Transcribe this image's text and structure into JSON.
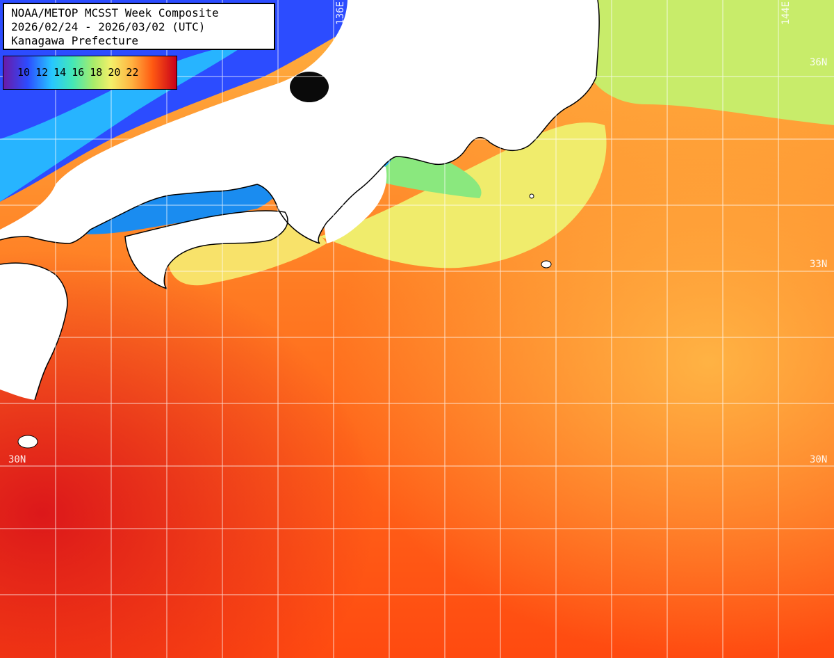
{
  "title": {
    "line1": "NOAA/METOP MCSST Week Composite",
    "line2": "2026/02/24 - 2026/03/02 (UTC)",
    "line3": "Kanagawa Prefecture"
  },
  "legend": {
    "ticks": [
      "10",
      "12",
      "14",
      "16",
      "18",
      "20",
      "22"
    ],
    "colors": [
      "#6a1aa8",
      "#2c4cff",
      "#27c7ff",
      "#44e8b6",
      "#a8ec6a",
      "#f3f06a",
      "#ffb341",
      "#ff5a12",
      "#c8001a"
    ]
  },
  "grid_labels": {
    "lon_136": "136E",
    "lon_144": "144E",
    "lat_36": "36N",
    "lat_33": "33N",
    "lat_30_left": "30N",
    "lat_30_right": "30N"
  },
  "colors": {
    "land": "#ffffff",
    "coast": "#000000",
    "grid": "#ffffff",
    "sst_warm": "#ff5a12",
    "sst_cool": "#a8ec6a"
  }
}
